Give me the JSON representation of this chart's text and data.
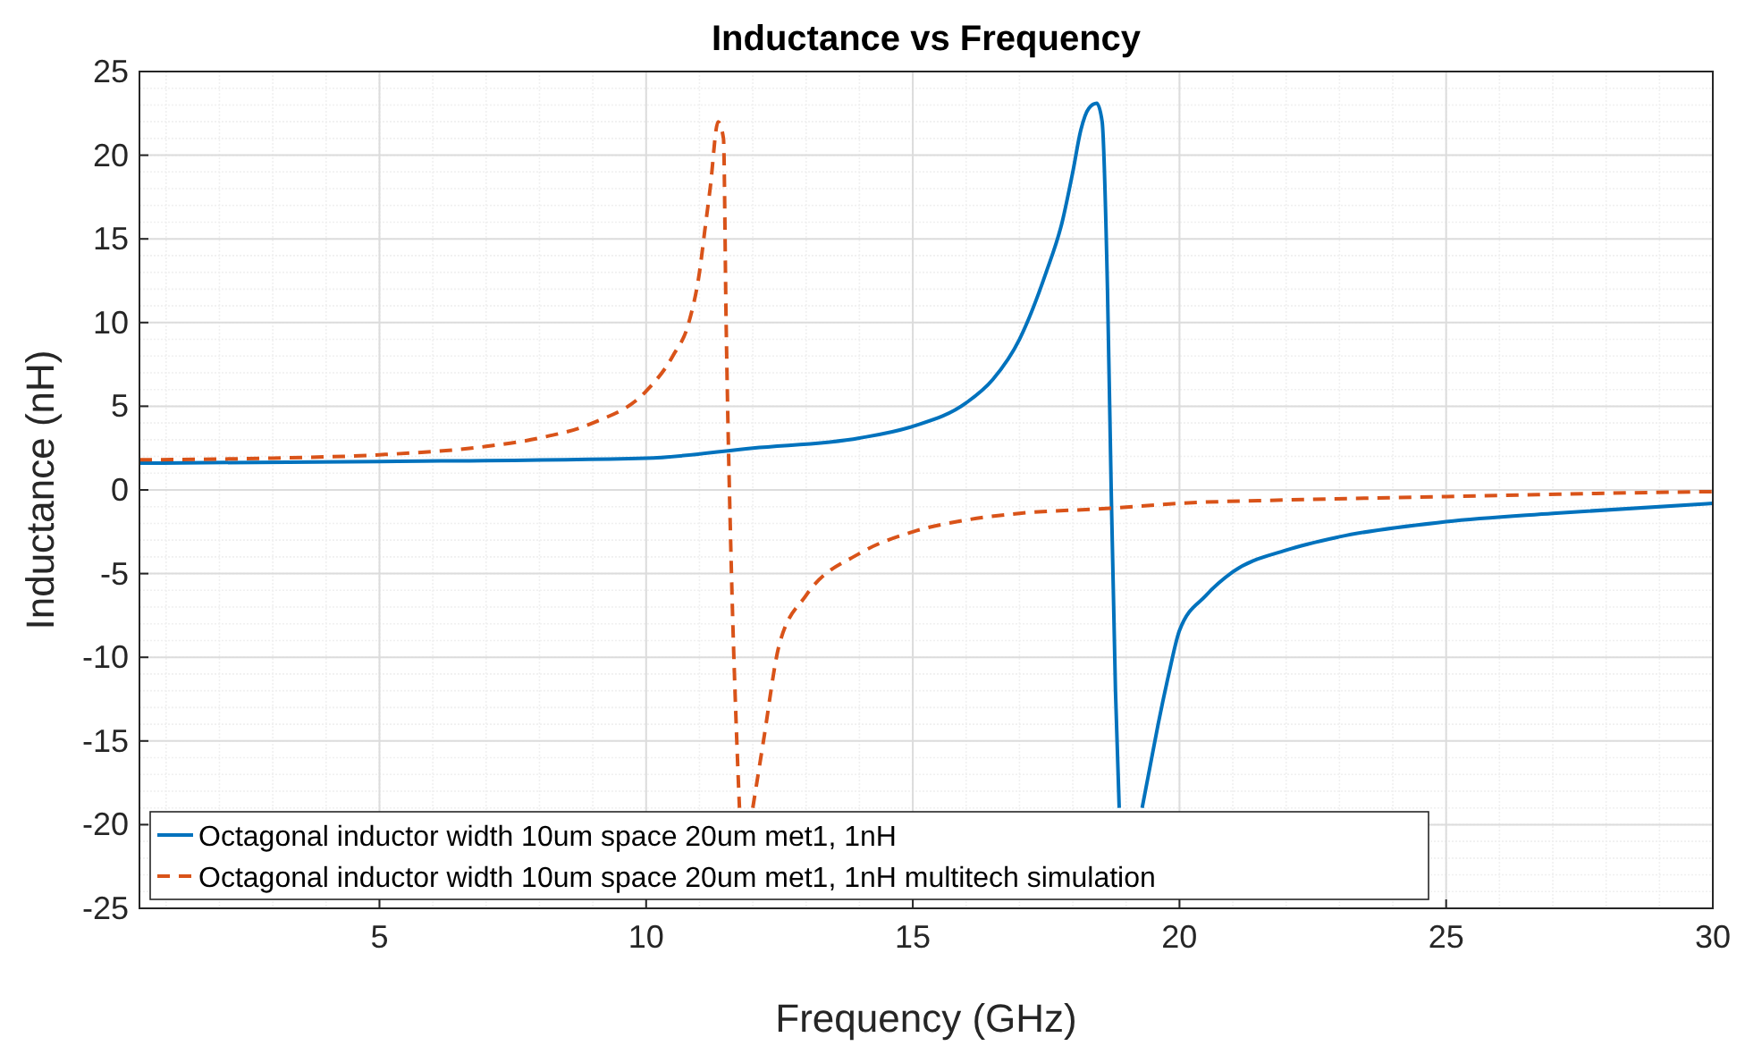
{
  "chart_data": {
    "type": "line",
    "title": "Inductance vs Frequency",
    "xlabel": "Frequency (GHz)",
    "ylabel": "Inductance (nH)",
    "xlim": [
      0.5,
      30
    ],
    "xticks": [
      5,
      10,
      15,
      20,
      25,
      30
    ],
    "ylim": [
      -25,
      25
    ],
    "yticks": [
      -25,
      -20,
      -15,
      -10,
      -5,
      0,
      5,
      10,
      15,
      20,
      25
    ],
    "grid": true,
    "legend": "bottom left",
    "series": [
      {
        "name": "Octagonal inductor width 10um space 20um met1, 1nH",
        "color": "#0072bd",
        "line_style": "solid",
        "x": [
          0.5,
          5,
          10,
          12,
          14,
          15,
          16,
          16.5,
          17,
          17.5,
          17.8,
          18,
          18.15,
          18.3,
          18.45,
          18.55,
          18.65,
          18.72,
          18.8,
          18.87,
          19.1,
          19.3,
          19.45,
          19.6,
          19.8,
          20,
          20.5,
          21,
          22,
          23,
          25,
          27,
          30
        ],
        "values": [
          1.6,
          1.7,
          1.9,
          2.5,
          3.1,
          3.8,
          5.2,
          6.6,
          9,
          13,
          16,
          19,
          21.5,
          22.8,
          23.1,
          22,
          12,
          0,
          -12,
          -19,
          null,
          -19,
          -16.5,
          -14,
          -11,
          -8.4,
          -6.3,
          -4.9,
          -3.6,
          -2.8,
          -1.9,
          -1.4,
          -0.8
        ]
      },
      {
        "name": "Octagonal inductor width 10um space 20um met1, 1nH multitech simulation",
        "color": "#d95319",
        "line_style": "dashed",
        "x": [
          0.5,
          3,
          5,
          7,
          8,
          9,
          10,
          10.5,
          10.8,
          11,
          11.1,
          11.2,
          11.35,
          11.45,
          11.5,
          11.6,
          11.7,
          11.75,
          11.9,
          12,
          12.1,
          12.2,
          12.5,
          13,
          14,
          15,
          16,
          17,
          18.7,
          20,
          22,
          25,
          28,
          30
        ],
        "values": [
          1.8,
          1.9,
          2.1,
          2.6,
          3.1,
          4.0,
          5.9,
          8,
          10,
          13,
          15.5,
          18,
          22,
          21,
          10,
          -5,
          -15,
          -19,
          null,
          -19,
          -17,
          -15,
          -9.2,
          -6.3,
          -3.8,
          -2.5,
          -1.8,
          -1.4,
          -1.1,
          -0.8,
          -0.6,
          -0.4,
          -0.2,
          -0.1
        ]
      }
    ]
  }
}
